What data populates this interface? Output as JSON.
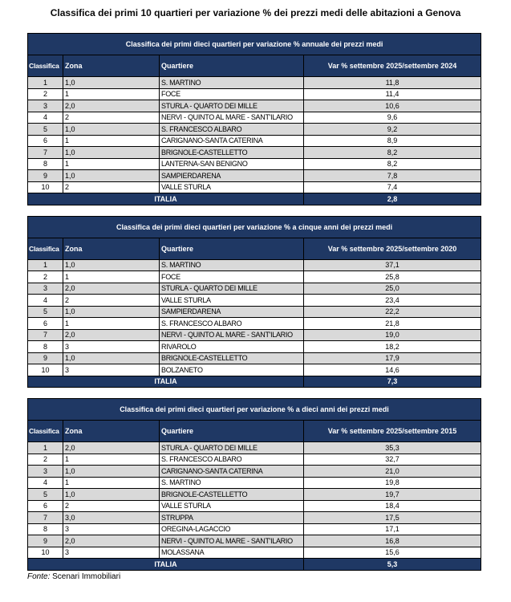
{
  "page": {
    "title": "Classifica dei primi 10 quartieri per variazione % dei prezzi medi delle abitazioni a Genova",
    "source_label": "Fonte:",
    "source_value": "Scenari Immobiliari"
  },
  "colors": {
    "header_navy": "#1F3864",
    "stripe_gray": "#D9D9D9",
    "row_white": "#FFFFFF",
    "border_black": "#000000"
  },
  "columns": [
    "Classifica",
    "Zona",
    "Quartiere"
  ],
  "tables": [
    {
      "title": "Classifica dei primi dieci quartieri per variazione % annuale dei prezzi medi",
      "var_header": "Var % settembre 2025/settembre 2024",
      "rows": [
        {
          "rank": "1",
          "zona": "1,0",
          "quartiere": "S. MARTINO",
          "var": "11,8"
        },
        {
          "rank": "2",
          "zona": "1",
          "quartiere": "FOCE",
          "var": "11,4"
        },
        {
          "rank": "3",
          "zona": "2,0",
          "quartiere": "STURLA - QUARTO DEI MILLE",
          "var": "10,6"
        },
        {
          "rank": "4",
          "zona": "2",
          "quartiere": "NERVI - QUINTO AL MARE - SANT'ILARIO",
          "var": "9,6"
        },
        {
          "rank": "5",
          "zona": "1,0",
          "quartiere": "S. FRANCESCO ALBARO",
          "var": "9,2"
        },
        {
          "rank": "6",
          "zona": "1",
          "quartiere": "CARIGNANO-SANTA CATERINA",
          "var": "8,9"
        },
        {
          "rank": "7",
          "zona": "1,0",
          "quartiere": "BRIGNOLE-CASTELLETTO",
          "var": "8,2"
        },
        {
          "rank": "8",
          "zona": "1",
          "quartiere": "LANTERNA-SAN BENIGNO",
          "var": "8,2"
        },
        {
          "rank": "9",
          "zona": "1,0",
          "quartiere": "SAMPIERDARENA",
          "var": "7,8"
        },
        {
          "rank": "10",
          "zona": "2",
          "quartiere": "VALLE STURLA",
          "var": "7,4"
        }
      ],
      "footer": {
        "label": "ITALIA",
        "value": "2,8"
      }
    },
    {
      "title": "Classifica dei primi dieci quartieri per variazione % a cinque anni dei prezzi medi",
      "var_header": "Var % settembre 2025/settembre 2020",
      "rows": [
        {
          "rank": "1",
          "zona": "1,0",
          "quartiere": "S. MARTINO",
          "var": "37,1"
        },
        {
          "rank": "2",
          "zona": "1",
          "quartiere": "FOCE",
          "var": "25,8"
        },
        {
          "rank": "3",
          "zona": "2,0",
          "quartiere": "STURLA - QUARTO DEI MILLE",
          "var": "25,0"
        },
        {
          "rank": "4",
          "zona": "2",
          "quartiere": "VALLE STURLA",
          "var": "23,4"
        },
        {
          "rank": "5",
          "zona": "1,0",
          "quartiere": "SAMPIERDARENA",
          "var": "22,2"
        },
        {
          "rank": "6",
          "zona": "1",
          "quartiere": "S. FRANCESCO ALBARO",
          "var": "21,8"
        },
        {
          "rank": "7",
          "zona": "2,0",
          "quartiere": "NERVI - QUINTO AL MARE - SANT'ILARIO",
          "var": "19,0"
        },
        {
          "rank": "8",
          "zona": "3",
          "quartiere": "RIVAROLO",
          "var": "18,2"
        },
        {
          "rank": "9",
          "zona": "1,0",
          "quartiere": "BRIGNOLE-CASTELLETTO",
          "var": "17,9"
        },
        {
          "rank": "10",
          "zona": "3",
          "quartiere": "BOLZANETO",
          "var": "14,6"
        }
      ],
      "footer": {
        "label": "ITALIA",
        "value": "7,3"
      }
    },
    {
      "title": "Classifica dei primi dieci quartieri per variazione % a dieci anni dei prezzi medi",
      "var_header": "Var % settembre 2025/settembre 2015",
      "rows": [
        {
          "rank": "1",
          "zona": "2,0",
          "quartiere": "STURLA - QUARTO DEI MILLE",
          "var": "35,3"
        },
        {
          "rank": "2",
          "zona": "1",
          "quartiere": "S. FRANCESCO ALBARO",
          "var": "32,7"
        },
        {
          "rank": "3",
          "zona": "1,0",
          "quartiere": "CARIGNANO-SANTA CATERINA",
          "var": "21,0"
        },
        {
          "rank": "4",
          "zona": "1",
          "quartiere": "S. MARTINO",
          "var": "19,8"
        },
        {
          "rank": "5",
          "zona": "1,0",
          "quartiere": "BRIGNOLE-CASTELLETTO",
          "var": "19,7"
        },
        {
          "rank": "6",
          "zona": "2",
          "quartiere": "VALLE STURLA",
          "var": "18,4"
        },
        {
          "rank": "7",
          "zona": "3,0",
          "quartiere": "STRUPPA",
          "var": "17,5"
        },
        {
          "rank": "8",
          "zona": "3",
          "quartiere": "OREGINA-LAGACCIO",
          "var": "17,1"
        },
        {
          "rank": "9",
          "zona": "2,0",
          "quartiere": "NERVI - QUINTO AL MARE - SANT'ILARIO",
          "var": "16,8"
        },
        {
          "rank": "10",
          "zona": "3",
          "quartiere": "MOLASSANA",
          "var": "15,6"
        }
      ],
      "footer": {
        "label": "ITALIA",
        "value": "5,3"
      }
    }
  ]
}
